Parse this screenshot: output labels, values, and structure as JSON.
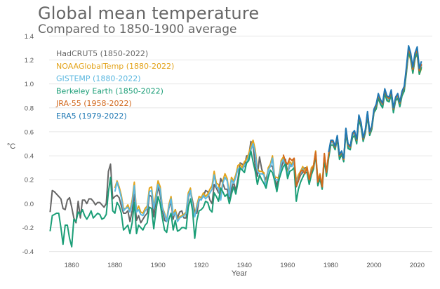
{
  "chart_data": {
    "type": "line",
    "title": "Global mean temperature",
    "subtitle": "Compared to 1850-1900 average",
    "xlabel": "Year",
    "ylabel": "°C",
    "xlim": [
      1845,
      2027
    ],
    "ylim": [
      -0.42,
      1.42
    ],
    "xticks": [
      1860,
      1880,
      1900,
      1920,
      1940,
      1960,
      1980,
      2000,
      2020
    ],
    "yticks": [
      -0.4,
      -0.2,
      0.0,
      0.2,
      0.4,
      0.6,
      0.8,
      1.0,
      1.2,
      1.4
    ],
    "ytick_labels": [
      "-0.4",
      "-0.2",
      "0.0",
      "0.2",
      "0.4",
      "0.6",
      "0.8",
      "1.0",
      "1.2",
      "1.4"
    ],
    "grid": "horizontal",
    "legend_position": "top-left",
    "series": [
      {
        "name": "HadCRUT5 (1850-2022)",
        "color": "#666666",
        "start": 1850,
        "values": [
          -0.07,
          0.11,
          0.1,
          0.08,
          0.06,
          0.04,
          -0.04,
          -0.05,
          0.03,
          0.05,
          -0.03,
          -0.12,
          -0.16,
          0.02,
          -0.12,
          0.03,
          0.03,
          0.0,
          0.04,
          0.04,
          0.02,
          -0.01,
          0.01,
          0.01,
          -0.01,
          -0.03,
          0.0,
          0.27,
          0.33,
          0.04,
          0.06,
          0.07,
          0.05,
          -0.02,
          -0.08,
          -0.08,
          -0.06,
          -0.15,
          -0.06,
          0.08,
          -0.14,
          -0.1,
          -0.16,
          -0.13,
          -0.1,
          -0.08,
          0.07,
          0.06,
          -0.11,
          0.03,
          0.14,
          0.07,
          -0.05,
          -0.14,
          -0.15,
          -0.04,
          0.02,
          -0.13,
          -0.05,
          -0.12,
          -0.07,
          -0.06,
          -0.12,
          -0.12,
          0.05,
          0.11,
          0.02,
          -0.07,
          -0.08,
          0.03,
          0.04,
          0.06,
          0.11,
          0.1,
          0.03,
          0.0,
          0.16,
          0.13,
          0.09,
          0.21,
          0.17,
          0.12,
          0.12,
          0.04,
          0.12,
          0.18,
          0.11,
          0.21,
          0.34,
          0.33,
          0.31,
          0.4,
          0.4,
          0.52,
          0.49,
          0.31,
          0.23,
          0.39,
          0.29,
          0.24,
          0.2,
          0.28,
          0.32,
          0.31,
          0.23,
          0.14,
          0.24,
          0.3,
          0.35,
          0.37,
          0.26,
          0.31,
          0.33,
          0.34,
          0.14,
          0.19,
          0.24,
          0.26,
          0.3,
          0.3,
          0.19,
          0.26,
          0.32,
          0.43,
          0.16,
          0.22,
          0.13,
          0.4,
          0.25,
          0.4,
          0.51,
          0.51,
          0.47,
          0.56,
          0.39,
          0.42,
          0.36,
          0.62,
          0.49,
          0.47,
          0.58,
          0.6,
          0.53,
          0.73,
          0.67,
          0.54,
          0.61,
          0.76,
          0.59,
          0.64,
          0.78,
          0.82,
          0.91,
          0.86,
          0.83,
          0.95,
          0.89,
          0.88,
          0.94,
          0.78,
          0.88,
          0.91,
          0.84,
          0.93,
          0.96,
          1.12,
          1.29,
          1.23,
          1.11,
          1.23,
          1.28,
          1.1,
          1.16
        ]
      },
      {
        "name": "NOAAGlobalTemp (1880-2022)",
        "color": "#e3a31a",
        "start": 1880,
        "values": [
          0.13,
          0.19,
          0.14,
          0.07,
          -0.04,
          -0.04,
          -0.01,
          -0.06,
          0.03,
          0.18,
          -0.06,
          -0.02,
          -0.07,
          -0.08,
          -0.04,
          -0.02,
          0.13,
          0.14,
          -0.03,
          0.08,
          0.19,
          0.14,
          -0.03,
          -0.08,
          -0.14,
          -0.01,
          0.06,
          -0.09,
          -0.05,
          -0.14,
          -0.11,
          -0.1,
          -0.09,
          -0.07,
          0.09,
          0.13,
          -0.02,
          -0.1,
          -0.01,
          0.06,
          0.05,
          0.09,
          0.06,
          0.08,
          0.12,
          0.15,
          0.27,
          0.17,
          0.16,
          0.05,
          0.19,
          0.25,
          0.21,
          0.08,
          0.22,
          0.19,
          0.24,
          0.32,
          0.33,
          0.3,
          0.35,
          0.37,
          0.42,
          0.48,
          0.53,
          0.45,
          0.29,
          0.27,
          0.27,
          0.26,
          0.14,
          0.3,
          0.33,
          0.4,
          0.22,
          0.22,
          0.21,
          0.36,
          0.39,
          0.32,
          0.25,
          0.35,
          0.33,
          0.38,
          0.19,
          0.24,
          0.27,
          0.31,
          0.27,
          0.31,
          0.2,
          0.3,
          0.32,
          0.44,
          0.2,
          0.25,
          0.15,
          0.41,
          0.26,
          0.42,
          0.52,
          0.52,
          0.47,
          0.56,
          0.4,
          0.43,
          0.37,
          0.61,
          0.48,
          0.46,
          0.57,
          0.59,
          0.52,
          0.72,
          0.65,
          0.53,
          0.6,
          0.75,
          0.58,
          0.63,
          0.77,
          0.8,
          0.89,
          0.84,
          0.81,
          0.93,
          0.87,
          0.86,
          0.92,
          0.77,
          0.87,
          0.89,
          0.82,
          0.91,
          0.95,
          1.1,
          1.26,
          1.2,
          1.09,
          1.21,
          1.25,
          1.08,
          1.13
        ]
      },
      {
        "name": "GISTEMP (1880-2022)",
        "color": "#5cb8e0",
        "start": 1880,
        "values": [
          0.1,
          0.18,
          0.12,
          0.05,
          -0.06,
          -0.04,
          -0.03,
          -0.07,
          0.0,
          0.15,
          -0.07,
          -0.05,
          -0.09,
          -0.1,
          -0.06,
          -0.04,
          0.1,
          0.11,
          -0.04,
          0.05,
          0.16,
          0.12,
          -0.04,
          -0.09,
          -0.15,
          -0.03,
          0.04,
          -0.1,
          -0.07,
          -0.15,
          -0.12,
          -0.11,
          -0.1,
          -0.08,
          0.07,
          0.11,
          -0.03,
          -0.11,
          -0.03,
          0.04,
          0.03,
          0.07,
          0.04,
          0.06,
          0.09,
          0.12,
          0.24,
          0.14,
          0.13,
          0.03,
          0.17,
          0.22,
          0.19,
          0.06,
          0.2,
          0.17,
          0.22,
          0.29,
          0.3,
          0.28,
          0.32,
          0.34,
          0.39,
          0.45,
          0.5,
          0.42,
          0.27,
          0.25,
          0.25,
          0.24,
          0.13,
          0.28,
          0.31,
          0.38,
          0.2,
          0.2,
          0.19,
          0.34,
          0.37,
          0.3,
          0.24,
          0.33,
          0.31,
          0.36,
          0.17,
          0.22,
          0.25,
          0.29,
          0.25,
          0.29,
          0.18,
          0.28,
          0.3,
          0.42,
          0.18,
          0.23,
          0.13,
          0.4,
          0.25,
          0.41,
          0.51,
          0.51,
          0.46,
          0.55,
          0.39,
          0.42,
          0.36,
          0.61,
          0.48,
          0.46,
          0.57,
          0.59,
          0.52,
          0.72,
          0.66,
          0.53,
          0.6,
          0.75,
          0.58,
          0.63,
          0.77,
          0.81,
          0.9,
          0.85,
          0.82,
          0.94,
          0.88,
          0.87,
          0.93,
          0.78,
          0.87,
          0.9,
          0.83,
          0.92,
          0.96,
          1.11,
          1.28,
          1.22,
          1.1,
          1.22,
          1.27,
          1.09,
          1.15
        ]
      },
      {
        "name": "Berkeley Earth (1850-2022)",
        "color": "#1b9e77",
        "start": 1850,
        "values": [
          -0.23,
          -0.1,
          -0.09,
          -0.08,
          -0.08,
          -0.2,
          -0.34,
          -0.18,
          -0.18,
          -0.29,
          -0.36,
          -0.13,
          -0.15,
          -0.07,
          -0.09,
          -0.05,
          -0.1,
          -0.13,
          -0.1,
          -0.06,
          -0.12,
          -0.1,
          -0.08,
          -0.09,
          -0.13,
          -0.12,
          -0.09,
          0.1,
          0.22,
          -0.06,
          -0.08,
          0.01,
          -0.02,
          -0.08,
          -0.22,
          -0.2,
          -0.18,
          -0.25,
          -0.16,
          0.01,
          -0.25,
          -0.18,
          -0.2,
          -0.22,
          -0.18,
          -0.16,
          -0.03,
          -0.04,
          -0.21,
          -0.06,
          0.06,
          0.0,
          -0.12,
          -0.22,
          -0.24,
          -0.13,
          -0.08,
          -0.22,
          -0.14,
          -0.23,
          -0.22,
          -0.2,
          -0.2,
          -0.21,
          -0.03,
          0.04,
          -0.06,
          -0.29,
          -0.14,
          -0.06,
          -0.05,
          -0.03,
          0.02,
          0.01,
          -0.05,
          -0.07,
          0.09,
          0.06,
          0.02,
          0.13,
          0.1,
          0.06,
          0.08,
          0.0,
          0.08,
          0.14,
          0.08,
          0.18,
          0.3,
          0.28,
          0.26,
          0.34,
          0.36,
          0.44,
          0.35,
          0.27,
          0.16,
          0.24,
          0.2,
          0.17,
          0.13,
          0.22,
          0.28,
          0.26,
          0.19,
          0.1,
          0.2,
          0.26,
          0.31,
          0.33,
          0.21,
          0.27,
          0.28,
          0.3,
          0.02,
          0.12,
          0.18,
          0.22,
          0.26,
          0.26,
          0.16,
          0.24,
          0.29,
          0.41,
          0.15,
          0.21,
          0.12,
          0.37,
          0.23,
          0.38,
          0.49,
          0.49,
          0.45,
          0.54,
          0.37,
          0.41,
          0.35,
          0.59,
          0.46,
          0.45,
          0.55,
          0.57,
          0.5,
          0.7,
          0.64,
          0.52,
          0.59,
          0.73,
          0.57,
          0.62,
          0.76,
          0.79,
          0.88,
          0.83,
          0.8,
          0.92,
          0.86,
          0.85,
          0.91,
          0.76,
          0.86,
          0.88,
          0.81,
          0.9,
          0.94,
          1.09,
          1.27,
          1.21,
          1.09,
          1.21,
          1.26,
          1.08,
          1.14
        ]
      },
      {
        "name": "JRA-55 (1958-2022)",
        "color": "#d2691e",
        "start": 1958,
        "values": [
          0.41,
          0.35,
          0.33,
          0.38,
          0.36,
          0.38,
          0.15,
          0.2,
          0.27,
          0.28,
          0.25,
          0.3,
          0.2,
          0.27,
          0.31,
          0.43,
          0.18,
          0.24,
          0.14,
          0.42,
          0.26,
          0.41,
          0.52,
          0.52,
          0.47,
          0.56,
          0.4,
          0.43,
          0.37,
          0.62,
          0.49,
          0.47,
          0.58,
          0.6,
          0.53,
          0.73,
          0.67,
          0.54,
          0.61,
          0.76,
          0.59,
          0.64,
          0.78,
          0.82,
          0.91,
          0.86,
          0.83,
          0.95,
          0.89,
          0.88,
          0.94,
          0.79,
          0.88,
          0.91,
          0.84,
          0.93,
          0.97,
          1.12,
          1.3,
          1.24,
          1.12,
          1.24,
          1.29,
          1.11,
          1.17
        ]
      },
      {
        "name": "ERA5 (1979-2022)",
        "color": "#1f78b4",
        "start": 1979,
        "values": [
          0.43,
          0.53,
          0.53,
          0.48,
          0.57,
          0.41,
          0.44,
          0.38,
          0.63,
          0.5,
          0.48,
          0.59,
          0.61,
          0.54,
          0.74,
          0.68,
          0.55,
          0.62,
          0.77,
          0.6,
          0.65,
          0.79,
          0.83,
          0.92,
          0.87,
          0.84,
          0.96,
          0.9,
          0.89,
          0.95,
          0.8,
          0.89,
          0.92,
          0.85,
          0.94,
          0.98,
          1.14,
          1.32,
          1.26,
          1.14,
          1.26,
          1.31,
          1.13,
          1.19
        ]
      }
    ]
  }
}
